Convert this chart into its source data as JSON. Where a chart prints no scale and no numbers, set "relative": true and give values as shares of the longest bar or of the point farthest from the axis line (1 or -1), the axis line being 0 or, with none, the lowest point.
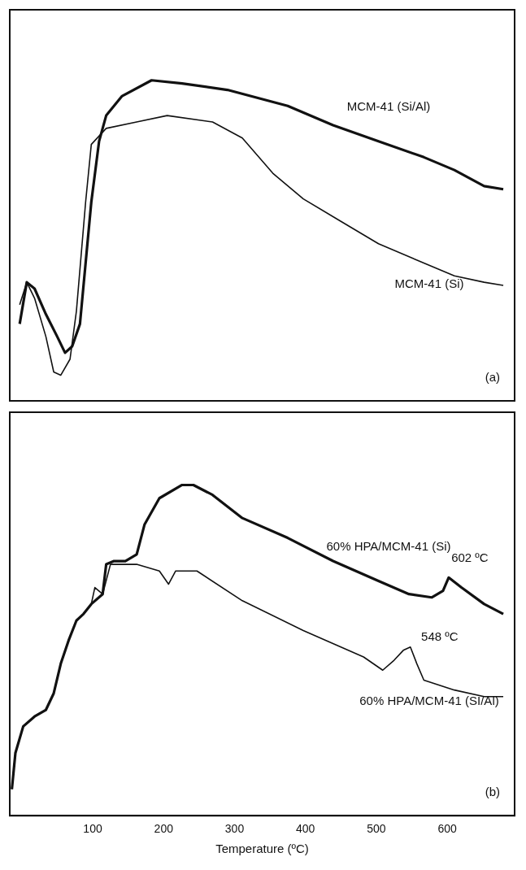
{
  "chart_data": [
    {
      "type": "line",
      "relative": true,
      "xlim": [
        -17,
        695
      ],
      "xticks": [
        100,
        200,
        300,
        400,
        500,
        600
      ],
      "tick_labels": false,
      "grid": false,
      "legend": false,
      "marker": "none",
      "annotations": [
        "(a)"
      ],
      "series": [
        {
          "name": "MCM-41 (Si/Al)",
          "color": "#111111",
          "x": [
            -3,
            7,
            18,
            34,
            50,
            61,
            71,
            82,
            90,
            98,
            109,
            119,
            141,
            183,
            226,
            290,
            375,
            439,
            503,
            567,
            610,
            652,
            679
          ],
          "values": [
            0.24,
            0.37,
            0.35,
            0.27,
            0.2,
            0.15,
            0.17,
            0.24,
            0.43,
            0.62,
            0.81,
            0.89,
            0.95,
            1,
            0.99,
            0.97,
            0.92,
            0.86,
            0.81,
            0.76,
            0.72,
            0.67,
            0.66
          ]
        },
        {
          "name": "MCM-41 (Si)",
          "color": "#111111",
          "x": [
            -3,
            7,
            18,
            34,
            45,
            55,
            68,
            77,
            90,
            98,
            119,
            162,
            205,
            269,
            311,
            354,
            397,
            450,
            503,
            567,
            610,
            652,
            679
          ],
          "values": [
            0.3,
            0.37,
            0.32,
            0.2,
            0.09,
            0.08,
            0.13,
            0.28,
            0.62,
            0.8,
            0.85,
            0.87,
            0.89,
            0.87,
            0.82,
            0.71,
            0.63,
            0.56,
            0.49,
            0.43,
            0.39,
            0.37,
            0.36
          ]
        }
      ]
    },
    {
      "type": "line",
      "relative": true,
      "xlim": [
        -17,
        695
      ],
      "xticks": [
        100,
        200,
        300,
        400,
        500,
        600
      ],
      "tick_labels": "x",
      "xlabel": "Temperature (ºC)",
      "grid": false,
      "legend": false,
      "marker": "none",
      "annotations": [
        {
          "text": "602 ºC",
          "x": 602,
          "y": 0.72
        },
        {
          "text": "548 ºC",
          "x": 548,
          "y": 0.51
        },
        "(b)"
      ],
      "series": [
        {
          "name": "60% HPA/MCM-41 (Si)",
          "color": "#111111",
          "x": [
            -14,
            -9,
            2,
            18,
            34,
            45,
            55,
            66,
            77,
            87,
            98,
            114,
            119,
            130,
            146,
            162,
            173,
            194,
            226,
            242,
            269,
            311,
            375,
            439,
            503,
            546,
            578,
            594,
            602,
            620,
            652,
            679
          ],
          "values": [
            0.08,
            0.19,
            0.27,
            0.3,
            0.32,
            0.37,
            0.46,
            0.53,
            0.59,
            0.61,
            0.64,
            0.67,
            0.76,
            0.77,
            0.77,
            0.79,
            0.88,
            0.96,
            1,
            1,
            0.97,
            0.9,
            0.84,
            0.77,
            0.71,
            0.67,
            0.66,
            0.68,
            0.72,
            0.69,
            0.64,
            0.61
          ]
        },
        {
          "name": "60% HPA/MCM-41 (SI/Al)",
          "color": "#111111",
          "x": [
            -14,
            -9,
            2,
            18,
            34,
            45,
            55,
            66,
            77,
            87,
            98,
            103,
            114,
            125,
            162,
            194,
            207,
            217,
            247,
            311,
            397,
            482,
            509,
            525,
            538,
            548,
            557,
            567,
            610,
            652,
            679
          ],
          "values": [
            0.08,
            0.19,
            0.27,
            0.3,
            0.32,
            0.37,
            0.46,
            0.53,
            0.59,
            0.61,
            0.64,
            0.69,
            0.67,
            0.76,
            0.76,
            0.74,
            0.7,
            0.74,
            0.74,
            0.65,
            0.56,
            0.48,
            0.44,
            0.47,
            0.5,
            0.51,
            0.46,
            0.41,
            0.38,
            0.36,
            0.36
          ]
        }
      ]
    }
  ]
}
